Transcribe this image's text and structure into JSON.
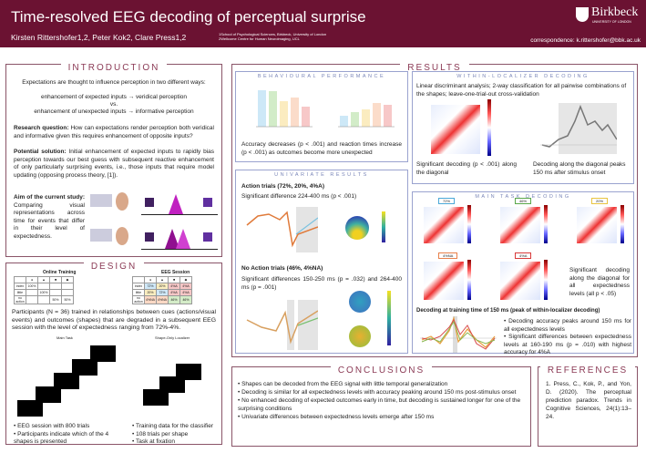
{
  "header": {
    "title": "Time-resolved EEG decoding of perceptual surprise",
    "authors": "Kirsten Rittershofer1,2, Peter Kok2, Clare Press1,2",
    "affiliation1": "1School of Psychological Sciences, Birkbeck, University of London",
    "affiliation2": "2Wellcome Centre for Human Neuroimaging, UCL",
    "logo_name": "Birkbeck",
    "logo_sub": "UNIVERSITY OF LONDON",
    "correspondence": "correspondence: k.rittershofer@bbk.ac.uk"
  },
  "intro": {
    "heading": "INTRODUCTION",
    "p1": "Expectations are thought to influence perception in two different ways:",
    "l1": "enhancement of expected inputs → veridical perception",
    "vs": "vs.",
    "l2": "enhancement of unexpected inputs → informative perception",
    "rq_label": "Research question:",
    "rq": " How can expectations render perception both veridical and informative given this requires enhancement of opposite inputs?",
    "ps_label": "Potential solution:",
    "ps": " Initial enhancement of expected inputs to rapidly bias perception towards our best guess with subsequent reactive enhancement of only particularly surprising events, i.e., those inputs that require model updating (opposing process theory, [1]).",
    "aim_label": "Aim of the current study:",
    "aim": " Comparing visual representations across time for events that differ in their level of expectedness."
  },
  "design": {
    "heading": "DESIGN",
    "online_title": "Online Training",
    "eeg_title": "EEG Session",
    "rows": [
      "index",
      "little",
      "no action"
    ],
    "text": "Participants (N = 36) trained in relationships between cues (actions/visual events) and outcomes (shapes) that are degraded in a subsequent EEG session with the level of expectedness ranging from 72%-4%.",
    "main_task": "Main Task",
    "localizer": "Shape-Only Localizer",
    "main_bullets": [
      "EEG session with 800 trials",
      "Participants indicate which of the 4 shapes is presented"
    ],
    "loc_bullets": [
      "Training data for the classifier",
      "108 trials per shape",
      "Task at fixation"
    ],
    "eeg_cells": [
      [
        "72%",
        "20%",
        "4%A",
        "4%A"
      ],
      [
        "20%",
        "72%",
        "4%A",
        "4%A"
      ],
      [
        "4%NA",
        "4%NA",
        "46%",
        "46%"
      ]
    ],
    "online_cells": [
      [
        "100%",
        "",
        "",
        ""
      ],
      [
        "",
        "100%",
        "",
        ""
      ],
      [
        "",
        "",
        "50%",
        "50%"
      ]
    ]
  },
  "results": {
    "heading": "RESULTS",
    "behav": {
      "heading": "BEHAVIOURAL PERFORMANCE",
      "text": "Accuracy decreases (p < .001) and reaction times increase (p < .001) as outcomes become more unexpected"
    },
    "univ": {
      "heading": "UNIVARIATE RESULTS",
      "action_title": "Action trials (72%, 20%, 4%A)",
      "action_text": "Significant difference 224-400 ms (p < .001)",
      "noaction_title": "No Action trials (46%, 4%NA)",
      "noaction_text": "Significant differences 150-250 ms (p = .032) and 264-400 ms (p = .001)"
    },
    "loc": {
      "heading": "WITHIN-LOCALIZER DECODING",
      "text": "Linear discriminant analysis; 2-way classification for all pairwise combinations of the shapes; leave-one-trial-out cross-validation",
      "cap1": "Significant decoding (p < .001) along the diagonal",
      "cap2": "Decoding along the diagonal peaks 150 ms after stimulus onset"
    },
    "main": {
      "heading": "MAIN TASK DECODING",
      "labels": [
        "72%",
        "46%",
        "20%",
        "4%NA",
        "4%A"
      ],
      "label_colors": [
        "#4aa8d8",
        "#5aa84a",
        "#e8c440",
        "#e8804a",
        "#d83a3a"
      ],
      "cap": "Significant decoding along the diagonal for all expectedness levels (all p < .05)",
      "train_title": "Decoding at training time of 150 ms (peak of within-localizer decoding)",
      "bullets": [
        "Decoding accuracy peaks around 150 ms for all expectedness levels",
        "Significant differences between expectedness levels at 160-190 ms (p = .010) with highest accuracy for 4%A"
      ]
    }
  },
  "conclusions": {
    "heading": "CONCLUSIONS",
    "items": [
      "Shapes can be decoded from the EEG signal with little temporal generalization",
      "Decoding is similar for all expectedness levels with accuracy peaking around 150 ms post-stimulus onset",
      "No enhanced decoding of expected outcomes early in time, but decoding is sustained longer for one of the surprising conditions",
      "Univariate differences between expectedness levels emerge after 150 ms"
    ]
  },
  "references": {
    "heading": "REFERENCES",
    "ref1": "1. Press, C., Kok, P., and Yon, D. (2020). The perceptual prediction paradox. Trends in Cognitive Sciences, 24(1):13–24."
  }
}
